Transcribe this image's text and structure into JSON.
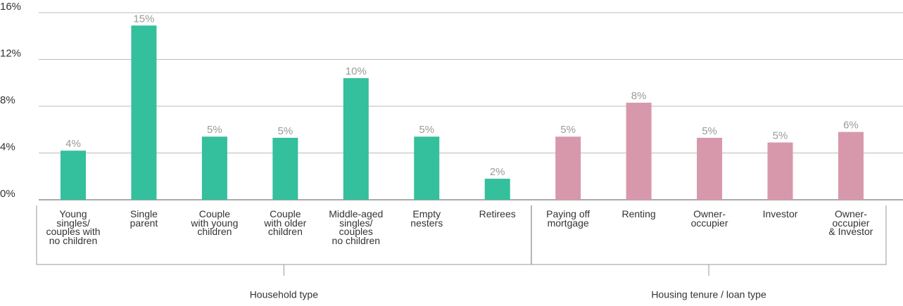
{
  "chart_data": {
    "type": "bar",
    "ylim": [
      0,
      16
    ],
    "yticks": [
      {
        "value": 0,
        "label": "0%"
      },
      {
        "value": 4,
        "label": "4%"
      },
      {
        "value": 8,
        "label": "8%"
      },
      {
        "value": 12,
        "label": "12%"
      },
      {
        "value": 16,
        "label": "16%"
      }
    ],
    "grid": true,
    "series": [
      {
        "name": "Household type",
        "color": "#34bf9d",
        "categories": [
          "Young\nsingles/\ncouples with\nno children",
          "Single\nparent",
          "Couple\nwith young\nchildren",
          "Couple\nwith older\nchildren",
          "Middle-aged\nsingles/\ncouples\nno children",
          "Empty\nnesters",
          "Retirees"
        ],
        "values": [
          4.2,
          14.9,
          5.4,
          5.3,
          10.4,
          5.4,
          1.8
        ],
        "value_labels": [
          "4%",
          "15%",
          "5%",
          "5%",
          "10%",
          "5%",
          "2%"
        ]
      },
      {
        "name": "Housing tenure / loan type",
        "color": "#d898ac",
        "categories": [
          "Paying off\nmortgage",
          "Renting",
          "Owner-\noccupier",
          "Investor",
          "Owner-\noccupier\n& Investor"
        ],
        "values": [
          5.4,
          8.3,
          5.3,
          4.9,
          5.8
        ],
        "value_labels": [
          "5%",
          "8%",
          "5%",
          "5%",
          "6%"
        ]
      }
    ]
  }
}
